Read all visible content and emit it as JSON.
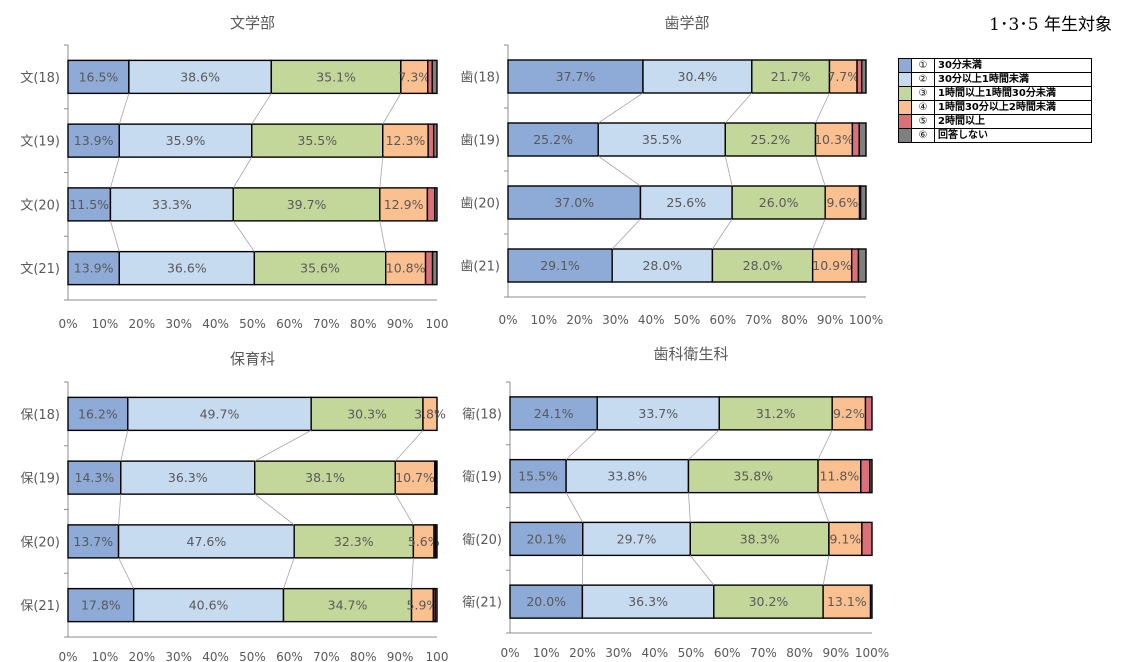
{
  "subject_label": "1･3･5 年生対象",
  "legend": [
    {
      "num": "①",
      "label": "30分未満",
      "color": "#8eaad6"
    },
    {
      "num": "②",
      "label": "30分以上1時間未満",
      "color": "#c6daf0"
    },
    {
      "num": "③",
      "label": "1時間以上1時間30分未満",
      "color": "#c4d79b"
    },
    {
      "num": "④",
      "label": "1時間30分以上2時間未満",
      "color": "#fac090"
    },
    {
      "num": "⑤",
      "label": "2時間以上",
      "color": "#d9707a"
    },
    {
      "num": "⑥",
      "label": "回答しない",
      "color": "#7f7f7f"
    }
  ],
  "chart_data": [
    {
      "type": "bar",
      "stacked": true,
      "orientation": "horizontal",
      "title": "文学部",
      "categories": [
        "文(18)",
        "文(19)",
        "文(20)",
        "文(21)"
      ],
      "xticks": [
        "0%",
        "10%",
        "20%",
        "30%",
        "40%",
        "50%",
        "60%",
        "70%",
        "80%",
        "90%",
        "100"
      ],
      "series": [
        {
          "name": "①",
          "values": [
            16.5,
            13.9,
            11.5,
            13.9
          ]
        },
        {
          "name": "②",
          "values": [
            38.6,
            35.9,
            33.3,
            36.6
          ]
        },
        {
          "name": "③",
          "values": [
            35.1,
            35.5,
            39.7,
            35.6
          ]
        },
        {
          "name": "④",
          "values": [
            7.3,
            12.3,
            12.9,
            10.8
          ]
        },
        {
          "name": "⑤",
          "values": [
            1.2,
            1.5,
            2.0,
            1.9
          ]
        },
        {
          "name": "⑥",
          "values": [
            1.3,
            0.9,
            0.6,
            1.2
          ]
        }
      ],
      "labels": [
        [
          "16.5%",
          "13.9%",
          "11.5%",
          "13.9%"
        ],
        [
          "38.6%",
          "35.9%",
          "33.3%",
          "36.6%"
        ],
        [
          "35.1%",
          "35.5%",
          "39.7%",
          "35.6%"
        ],
        [
          "7.3%",
          "12.3%",
          "12.9%",
          "10.8%"
        ],
        [
          "",
          "",
          "",
          ""
        ],
        [
          "",
          "",
          "",
          ""
        ]
      ],
      "xlim": [
        0,
        100
      ]
    },
    {
      "type": "bar",
      "stacked": true,
      "orientation": "horizontal",
      "title": "歯学部",
      "categories": [
        "歯(18)",
        "歯(19)",
        "歯(20)",
        "歯(21)"
      ],
      "xticks": [
        "0%",
        "10%",
        "20%",
        "30%",
        "40%",
        "50%",
        "60%",
        "70%",
        "80%",
        "90%",
        "100%"
      ],
      "series": [
        {
          "name": "①",
          "values": [
            37.7,
            25.2,
            37.0,
            29.1
          ]
        },
        {
          "name": "②",
          "values": [
            30.4,
            35.5,
            25.6,
            28.0
          ]
        },
        {
          "name": "③",
          "values": [
            21.7,
            25.2,
            26.0,
            28.0
          ]
        },
        {
          "name": "④",
          "values": [
            7.7,
            10.3,
            9.6,
            10.9
          ]
        },
        {
          "name": "⑤",
          "values": [
            1.3,
            1.9,
            0.3,
            1.9
          ]
        },
        {
          "name": "⑥",
          "values": [
            1.2,
            1.9,
            1.5,
            2.1
          ]
        }
      ],
      "labels": [
        [
          "37.7%",
          "25.2%",
          "37.0%",
          "29.1%"
        ],
        [
          "30.4%",
          "35.5%",
          "25.6%",
          "28.0%"
        ],
        [
          "21.7%",
          "25.2%",
          "26.0%",
          "28.0%"
        ],
        [
          "7.7%",
          "10.3%",
          "9.6%",
          "10.9%"
        ],
        [
          "",
          "",
          "",
          ""
        ],
        [
          "",
          "",
          "",
          ""
        ]
      ],
      "xlim": [
        0,
        100
      ]
    },
    {
      "type": "bar",
      "stacked": true,
      "orientation": "horizontal",
      "title": "保育科",
      "categories": [
        "保(18)",
        "保(19)",
        "保(20)",
        "保(21)"
      ],
      "xticks": [
        "0%",
        "10%",
        "20%",
        "30%",
        "40%",
        "50%",
        "60%",
        "70%",
        "80%",
        "90%",
        "100"
      ],
      "series": [
        {
          "name": "①",
          "values": [
            16.2,
            14.3,
            13.7,
            17.8
          ]
        },
        {
          "name": "②",
          "values": [
            49.7,
            36.3,
            47.6,
            40.6
          ]
        },
        {
          "name": "③",
          "values": [
            30.3,
            38.1,
            32.3,
            34.7
          ]
        },
        {
          "name": "④",
          "values": [
            3.8,
            10.7,
            5.6,
            5.9
          ]
        },
        {
          "name": "⑤",
          "values": [
            0.0,
            0.3,
            0.4,
            0.5
          ]
        },
        {
          "name": "⑥",
          "values": [
            0.0,
            0.3,
            0.4,
            0.5
          ]
        }
      ],
      "labels": [
        [
          "16.2%",
          "14.3%",
          "13.7%",
          "17.8%"
        ],
        [
          "49.7%",
          "36.3%",
          "47.6%",
          "40.6%"
        ],
        [
          "30.3%",
          "38.1%",
          "32.3%",
          "34.7%"
        ],
        [
          "3.8%",
          "10.7%",
          "5.6%",
          "5.9%"
        ],
        [
          "",
          "",
          "",
          ""
        ],
        [
          "",
          "",
          "",
          ""
        ]
      ],
      "xlim": [
        0,
        100
      ]
    },
    {
      "type": "bar",
      "stacked": true,
      "orientation": "horizontal",
      "title": "歯科衛生科",
      "categories": [
        "衛(18)",
        "衛(19)",
        "衛(20)",
        "衛(21)"
      ],
      "xticks": [
        "0%",
        "10%",
        "20%",
        "30%",
        "40%",
        "50%",
        "60%",
        "70%",
        "80%",
        "90%",
        "100%"
      ],
      "series": [
        {
          "name": "①",
          "values": [
            24.1,
            15.5,
            20.1,
            20.0
          ]
        },
        {
          "name": "②",
          "values": [
            33.7,
            33.8,
            29.7,
            36.3
          ]
        },
        {
          "name": "③",
          "values": [
            31.2,
            35.8,
            38.3,
            30.2
          ]
        },
        {
          "name": "④",
          "values": [
            9.2,
            11.8,
            9.1,
            13.1
          ]
        },
        {
          "name": "⑤",
          "values": [
            1.8,
            2.5,
            2.8,
            0.4
          ]
        },
        {
          "name": "⑥",
          "values": [
            0.0,
            0.6,
            0.0,
            0.0
          ]
        }
      ],
      "labels": [
        [
          "24.1%",
          "15.5%",
          "20.1%",
          "20.0%"
        ],
        [
          "33.7%",
          "33.8%",
          "29.7%",
          "36.3%"
        ],
        [
          "31.2%",
          "35.8%",
          "38.3%",
          "30.2%"
        ],
        [
          "9.2%",
          "11.8%",
          "9.1%",
          "13.1%"
        ],
        [
          "",
          "",
          "",
          ""
        ],
        [
          "",
          "",
          "",
          ""
        ]
      ],
      "xlim": [
        0,
        100
      ]
    }
  ]
}
